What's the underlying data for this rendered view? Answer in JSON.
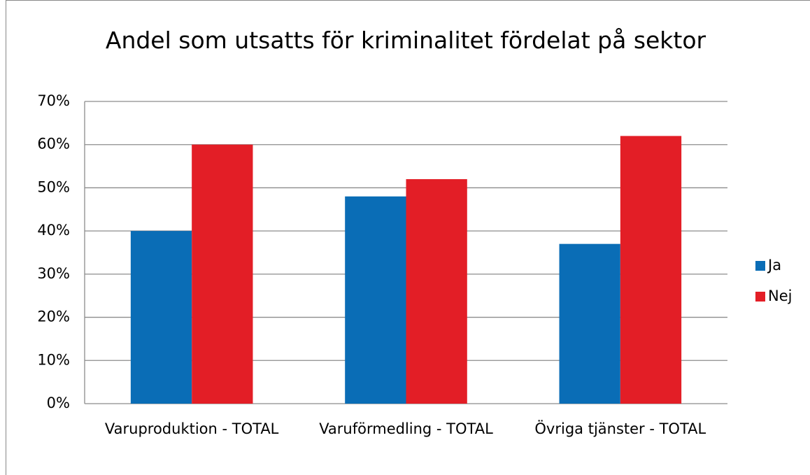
{
  "chart_data": {
    "type": "bar",
    "title": "Andel som utsatts för kriminalitet fördelat på sektor",
    "categories": [
      "Varuproduktion - TOTAL",
      "Varuförmedling - TOTAL",
      "Övriga tjänster - TOTAL"
    ],
    "series": [
      {
        "name": "Ja",
        "color": "#0a6db6",
        "values": [
          40,
          48,
          37
        ]
      },
      {
        "name": "Nej",
        "color": "#e31e26",
        "values": [
          60,
          52,
          62
        ]
      }
    ],
    "ylim": [
      0,
      70
    ],
    "yticks": [
      {
        "value": 0,
        "label": "0%"
      },
      {
        "value": 10,
        "label": "10%"
      },
      {
        "value": 20,
        "label": "20%"
      },
      {
        "value": 30,
        "label": "30%"
      },
      {
        "value": 40,
        "label": "40%"
      },
      {
        "value": 50,
        "label": "50%"
      },
      {
        "value": 60,
        "label": "60%"
      },
      {
        "value": 70,
        "label": "70%"
      }
    ],
    "grid": true,
    "legend": "right"
  }
}
